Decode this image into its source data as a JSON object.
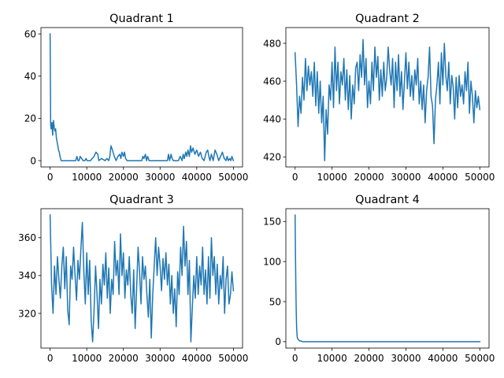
{
  "chart_data": [
    {
      "type": "line",
      "title": "Quadrant 1",
      "xlabel": "",
      "ylabel": "",
      "xlim": [
        -2500,
        52500
      ],
      "ylim": [
        -3,
        63
      ],
      "xticks": [
        0,
        10000,
        20000,
        30000,
        40000,
        50000
      ],
      "yticks": [
        0,
        20,
        40,
        60
      ],
      "series": [
        {
          "color": "#1f77b4",
          "x": [
            0,
            150,
            300,
            500,
            700,
            900,
            1100,
            1300,
            1500,
            1700,
            1900,
            2100,
            2300,
            2500,
            2700,
            3000,
            3500,
            4000,
            5000,
            6000,
            7000,
            7300,
            7600,
            7900,
            8200,
            9000,
            9500,
            9800,
            10100,
            11000,
            11500,
            12000,
            12500,
            13000,
            13300,
            14000,
            15000,
            15500,
            16000,
            16300,
            16600,
            17000,
            17500,
            18000,
            18500,
            19000,
            19300,
            19600,
            20000,
            20300,
            20600,
            21000,
            22000,
            23000,
            24000,
            25000,
            25300,
            25600,
            26000,
            26300,
            26600,
            27000,
            28000,
            29000,
            30000,
            31000,
            32000,
            32300,
            32600,
            33000,
            33300,
            33600,
            34000,
            35000,
            35500,
            36000,
            36300,
            36600,
            37000,
            37300,
            37600,
            38000,
            38300,
            38600,
            39000,
            39500,
            40000,
            40500,
            41000,
            41500,
            42000,
            42300,
            42600,
            43000,
            43300,
            43600,
            44000,
            44500,
            45000,
            45500,
            46000,
            46500,
            47000,
            47500,
            48000,
            48300,
            48600,
            49000,
            49300,
            49600,
            50000
          ],
          "y": [
            60,
            17,
            15,
            18,
            12,
            19,
            16,
            14,
            15,
            11,
            9,
            7,
            5,
            4,
            2,
            0,
            0,
            0,
            0,
            0,
            0,
            2,
            0,
            0,
            2,
            0,
            0,
            1,
            0,
            0,
            1,
            2,
            4,
            3,
            0,
            1,
            0,
            1,
            0,
            2,
            7,
            5,
            2,
            0,
            2,
            3,
            1,
            4,
            2,
            4,
            1,
            0,
            0,
            0,
            0,
            0,
            2,
            1,
            3,
            0,
            2,
            0,
            0,
            0,
            0,
            0,
            0,
            3,
            0,
            3,
            1,
            0,
            0,
            0,
            2,
            0,
            3,
            1,
            4,
            2,
            5,
            2,
            7,
            4,
            6,
            3,
            5,
            2,
            4,
            1,
            0,
            2,
            4,
            5,
            2,
            0,
            3,
            0,
            5,
            3,
            0,
            2,
            4,
            1,
            0,
            2,
            0,
            1,
            0,
            2,
            0
          ]
        }
      ]
    },
    {
      "type": "line",
      "title": "Quadrant 2",
      "xlabel": "",
      "ylabel": "",
      "xlim": [
        -2500,
        52500
      ],
      "ylim": [
        414.7,
        488.3
      ],
      "xticks": [
        0,
        10000,
        20000,
        30000,
        40000,
        50000
      ],
      "yticks": [
        420,
        440,
        460,
        480
      ],
      "series": [
        {
          "color": "#1f77b4",
          "x": [
            0,
            400,
            800,
            1200,
            1600,
            2000,
            2400,
            2800,
            3200,
            3600,
            4000,
            4400,
            4800,
            5200,
            5600,
            6000,
            6400,
            6800,
            7200,
            7600,
            8000,
            8400,
            8800,
            9200,
            9600,
            10000,
            10400,
            10800,
            11200,
            11600,
            12000,
            12400,
            12800,
            13200,
            13600,
            14000,
            14400,
            14800,
            15200,
            15600,
            16000,
            16400,
            16800,
            17200,
            17600,
            18000,
            18400,
            18800,
            19200,
            19600,
            20000,
            20400,
            20800,
            21200,
            21600,
            22000,
            22400,
            22800,
            23200,
            23600,
            24000,
            24400,
            24800,
            25200,
            25600,
            26000,
            26400,
            26800,
            27200,
            27600,
            28000,
            28400,
            28800,
            29200,
            29600,
            30000,
            30400,
            30800,
            31200,
            31600,
            32000,
            32400,
            32800,
            33200,
            33600,
            34000,
            34400,
            34800,
            35200,
            35600,
            36000,
            36400,
            36800,
            37200,
            37600,
            38000,
            38400,
            38800,
            39200,
            39600,
            40000,
            40400,
            40800,
            41200,
            41600,
            42000,
            42400,
            42800,
            43200,
            43600,
            44000,
            44400,
            44800,
            45200,
            45600,
            46000,
            46400,
            46800,
            47200,
            47600,
            48000,
            48400,
            48800,
            49200,
            49600,
            50000
          ],
          "y": [
            475,
            458,
            436,
            452,
            443,
            462,
            450,
            472,
            455,
            468,
            458,
            465,
            452,
            470,
            447,
            465,
            443,
            460,
            438,
            452,
            418,
            445,
            432,
            458,
            450,
            470,
            446,
            478,
            455,
            470,
            448,
            465,
            458,
            472,
            450,
            466,
            445,
            463,
            440,
            458,
            448,
            467,
            470,
            455,
            474,
            462,
            482,
            458,
            472,
            446,
            460,
            448,
            470,
            455,
            478,
            462,
            473,
            450,
            466,
            452,
            470,
            455,
            462,
            478,
            466,
            458,
            472,
            446,
            470,
            455,
            474,
            452,
            465,
            445,
            460,
            475,
            456,
            470,
            452,
            463,
            450,
            466,
            458,
            472,
            448,
            460,
            445,
            458,
            438,
            455,
            462,
            478,
            452,
            447,
            427,
            450,
            458,
            470,
            448,
            475,
            458,
            480,
            463,
            455,
            470,
            448,
            463,
            457,
            440,
            462,
            446,
            463,
            452,
            458,
            448,
            465,
            455,
            470,
            443,
            460,
            452,
            438,
            455,
            446,
            452,
            445
          ]
        }
      ]
    },
    {
      "type": "line",
      "title": "Quadrant 3",
      "xlabel": "",
      "ylabel": "",
      "xlim": [
        -2500,
        52500
      ],
      "ylim": [
        301.7,
        375.3
      ],
      "xticks": [
        0,
        10000,
        20000,
        30000,
        40000,
        50000
      ],
      "yticks": [
        320,
        340,
        360
      ],
      "series": [
        {
          "color": "#1f77b4",
          "x": [
            0,
            400,
            800,
            1200,
            1600,
            2000,
            2400,
            2800,
            3200,
            3600,
            4000,
            4400,
            4800,
            5200,
            5600,
            6000,
            6400,
            6800,
            7200,
            7600,
            8000,
            8400,
            8800,
            9200,
            9600,
            10000,
            10400,
            10800,
            11200,
            11600,
            12000,
            12400,
            12800,
            13200,
            13600,
            14000,
            14400,
            14800,
            15200,
            15600,
            16000,
            16400,
            16800,
            17200,
            17600,
            18000,
            18400,
            18800,
            19200,
            19600,
            20000,
            20400,
            20800,
            21200,
            21600,
            22000,
            22400,
            22800,
            23200,
            23600,
            24000,
            24400,
            24800,
            25200,
            25600,
            26000,
            26400,
            26800,
            27200,
            27600,
            28000,
            28400,
            28800,
            29200,
            29600,
            30000,
            30400,
            30800,
            31200,
            31600,
            32000,
            32400,
            32800,
            33200,
            33600,
            34000,
            34400,
            34800,
            35200,
            35600,
            36000,
            36400,
            36800,
            37200,
            37600,
            38000,
            38400,
            38800,
            39200,
            39600,
            40000,
            40400,
            40800,
            41200,
            41600,
            42000,
            42400,
            42800,
            43200,
            43600,
            44000,
            44400,
            44800,
            45200,
            45600,
            46000,
            46400,
            46800,
            47200,
            47600,
            48000,
            48400,
            48800,
            49200,
            49600,
            50000
          ],
          "y": [
            372,
            335,
            320,
            345,
            330,
            350,
            338,
            328,
            345,
            355,
            333,
            350,
            322,
            314,
            345,
            338,
            355,
            340,
            327,
            348,
            338,
            354,
            368,
            342,
            325,
            352,
            330,
            348,
            316,
            305,
            322,
            345,
            330,
            312,
            338,
            325,
            346,
            335,
            352,
            328,
            344,
            320,
            338,
            330,
            358,
            340,
            348,
            330,
            362,
            340,
            352,
            328,
            343,
            335,
            350,
            330,
            320,
            343,
            312,
            333,
            355,
            342,
            325,
            350,
            338,
            345,
            330,
            318,
            338,
            307,
            330,
            345,
            360,
            340,
            355,
            345,
            332,
            349,
            338,
            352,
            335,
            346,
            325,
            340,
            320,
            333,
            313,
            342,
            330,
            355,
            340,
            366,
            345,
            358,
            330,
            348,
            305,
            323,
            340,
            328,
            350,
            330,
            345,
            335,
            355,
            330,
            343,
            325,
            350,
            328,
            360,
            340,
            350,
            330,
            346,
            325,
            340,
            333,
            350,
            320,
            338,
            345,
            325,
            330,
            342,
            332
          ]
        }
      ]
    },
    {
      "type": "line",
      "title": "Quadrant 4",
      "xlabel": "",
      "ylabel": "",
      "xlim": [
        -2500,
        52500
      ],
      "ylim": [
        -8,
        166
      ],
      "xticks": [
        0,
        10000,
        20000,
        30000,
        40000,
        50000
      ],
      "yticks": [
        0,
        50,
        100,
        150
      ],
      "series": [
        {
          "color": "#1f77b4",
          "x": [
            0,
            100,
            200,
            300,
            400,
            500,
            600,
            800,
            1000,
            1200,
            1500,
            2000,
            3000,
            5000,
            10000,
            20000,
            30000,
            40000,
            50000
          ],
          "y": [
            158,
            110,
            70,
            40,
            20,
            10,
            5,
            3,
            2,
            1,
            1,
            0,
            0,
            0,
            0,
            0,
            0,
            0,
            0
          ]
        }
      ]
    }
  ]
}
